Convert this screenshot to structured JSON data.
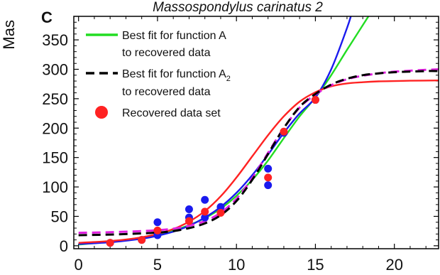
{
  "panel_label": "C",
  "chart_data": {
    "type": "scatter",
    "title": "Massospondylus carinatus 2",
    "ylabel": "Mas",
    "xlabel": "",
    "xlim": [
      -0.3,
      22.8
    ],
    "ylim": [
      -5,
      390
    ],
    "xticks": [
      0,
      5,
      10,
      15,
      20
    ],
    "yticks": [
      0,
      50,
      100,
      150,
      200,
      250,
      300,
      350
    ],
    "legend": {
      "position": "top-left",
      "entries": [
        {
          "line1": "Best fit for function A",
          "line2": "to recovered data",
          "color": "#22dd22",
          "style": "solid"
        },
        {
          "line1": "Best fit for function A",
          "line1_sub": "2",
          "line2": "to recovered data",
          "color": "#000000",
          "style": "dashed"
        },
        {
          "line1": "Recovered data set",
          "color": "#ff2222",
          "style": "dot"
        }
      ]
    },
    "series": [
      {
        "color": "#ff2222",
        "kind": "points",
        "points": [
          [
            2,
            5
          ],
          [
            4,
            10
          ],
          [
            5,
            26
          ],
          [
            7,
            42
          ],
          [
            8,
            58
          ],
          [
            9,
            56
          ],
          [
            12,
            116
          ],
          [
            13,
            194
          ],
          [
            15,
            248
          ]
        ]
      },
      {
        "color": "#1a1aee",
        "kind": "points",
        "points": [
          [
            2,
            5
          ],
          [
            4,
            10
          ],
          [
            5,
            18
          ],
          [
            5,
            40
          ],
          [
            7,
            48
          ],
          [
            7,
            62
          ],
          [
            8,
            48
          ],
          [
            8,
            78
          ],
          [
            9,
            66
          ],
          [
            12,
            103
          ],
          [
            12,
            131
          ],
          [
            13,
            192
          ],
          [
            15,
            248
          ]
        ]
      },
      {
        "color": "#ff2222",
        "kind": "curve",
        "points": [
          [
            0,
            5
          ],
          [
            1,
            6.3
          ],
          [
            2,
            8
          ],
          [
            3,
            10.6
          ],
          [
            4,
            14.4
          ],
          [
            5,
            20
          ],
          [
            6,
            28.4
          ],
          [
            7,
            41
          ],
          [
            8,
            59
          ],
          [
            9,
            84
          ],
          [
            10,
            116
          ],
          [
            11,
            152
          ],
          [
            12,
            188
          ],
          [
            13,
            220
          ],
          [
            14,
            245
          ],
          [
            15,
            261
          ],
          [
            16,
            271
          ],
          [
            17,
            276
          ],
          [
            18,
            278
          ],
          [
            19,
            279.5
          ],
          [
            20,
            280
          ],
          [
            21,
            280.5
          ],
          [
            22.8,
            281
          ]
        ]
      },
      {
        "color": "#1a1aee",
        "kind": "curve",
        "points": [
          [
            0,
            3
          ],
          [
            2,
            6
          ],
          [
            4,
            12
          ],
          [
            5,
            17
          ],
          [
            6,
            24
          ],
          [
            7,
            34
          ],
          [
            8,
            48
          ],
          [
            9,
            66
          ],
          [
            10,
            90
          ],
          [
            11,
            120
          ],
          [
            12,
            155
          ],
          [
            13,
            192
          ],
          [
            14,
            225
          ],
          [
            15,
            252
          ],
          [
            16,
            300
          ],
          [
            17,
            370
          ],
          [
            17.35,
            400
          ]
        ]
      },
      {
        "color": "#22dd22",
        "kind": "curve",
        "points": [
          [
            0,
            2
          ],
          [
            2,
            7
          ],
          [
            4,
            14
          ],
          [
            5,
            19
          ],
          [
            6,
            26
          ],
          [
            7,
            35
          ],
          [
            8,
            47
          ],
          [
            9,
            63
          ],
          [
            10,
            85
          ],
          [
            11,
            112
          ],
          [
            12,
            145
          ],
          [
            13,
            183
          ],
          [
            14,
            220
          ],
          [
            15,
            252
          ],
          [
            16,
            290
          ],
          [
            17,
            333
          ],
          [
            18,
            375
          ],
          [
            18.6,
            400
          ]
        ]
      },
      {
        "color": "#000000",
        "kind": "curve",
        "dash": "12 7",
        "points": [
          [
            0,
            18
          ],
          [
            2,
            19
          ],
          [
            4,
            21
          ],
          [
            5,
            22.5
          ],
          [
            6,
            25
          ],
          [
            7,
            30
          ],
          [
            8,
            38
          ],
          [
            9,
            52
          ],
          [
            10,
            76
          ],
          [
            11,
            112
          ],
          [
            12,
            156
          ],
          [
            13,
            200
          ],
          [
            14,
            236
          ],
          [
            15,
            258
          ],
          [
            16,
            274
          ],
          [
            17,
            284
          ],
          [
            18,
            290
          ],
          [
            19,
            293
          ],
          [
            20,
            295
          ],
          [
            22,
            297
          ],
          [
            22.8,
            297
          ]
        ]
      },
      {
        "color": "#e020e0",
        "kind": "curve",
        "dash": "12 7",
        "points": [
          [
            0,
            22
          ],
          [
            2,
            23
          ],
          [
            4,
            25
          ],
          [
            5,
            26.5
          ],
          [
            6,
            29
          ],
          [
            7,
            34
          ],
          [
            8,
            42
          ],
          [
            9,
            56
          ],
          [
            10,
            80
          ],
          [
            11,
            115
          ],
          [
            12,
            158
          ],
          [
            13,
            200
          ],
          [
            14,
            235
          ],
          [
            15,
            257
          ],
          [
            16,
            273
          ],
          [
            17,
            283
          ],
          [
            18,
            289
          ],
          [
            19,
            293
          ],
          [
            20,
            296
          ],
          [
            22,
            299
          ],
          [
            22.8,
            300
          ]
        ]
      }
    ]
  }
}
